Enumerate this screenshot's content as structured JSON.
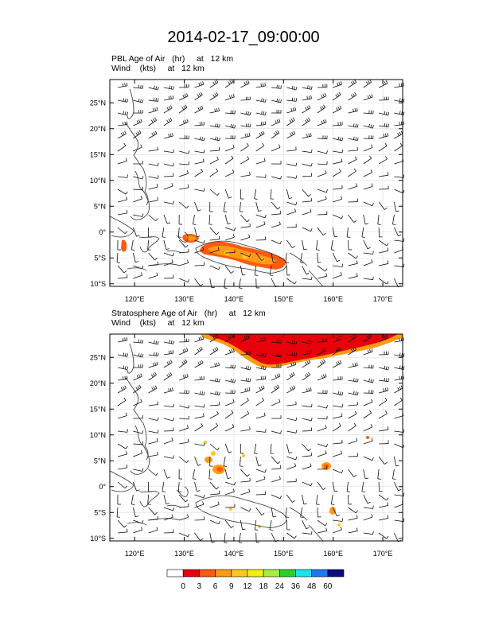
{
  "title": "2014-02-17_09:00:00",
  "panels": [
    {
      "id": "pbl",
      "field_line": "PBL Age of Air   (hr)     at   12 km",
      "wind_line": "Wind    (kts)     at   12 km",
      "lon_ticks": [
        "120°E",
        "130°E",
        "140°E",
        "150°E",
        "160°E",
        "170°E"
      ],
      "lat_ticks": [
        "25°N",
        "20°N",
        "15°N",
        "10°N",
        "5°N",
        "0°",
        "5°S",
        "10°S"
      ]
    },
    {
      "id": "strat",
      "field_line": "Stratosphere Age of Air   (hr)     at   12 km",
      "wind_line": "Wind    (kts)     at   12 km",
      "lon_ticks": [
        "120°E",
        "130°E",
        "140°E",
        "150°E",
        "160°E",
        "170°E"
      ],
      "lat_ticks": [
        "25°N",
        "20°N",
        "15°N",
        "10°N",
        "5°N",
        "0°",
        "5°S",
        "10°S"
      ]
    }
  ],
  "colorbar": {
    "labels": [
      "0",
      "3",
      "6",
      "9",
      "12",
      "18",
      "24",
      "36",
      "48",
      "60"
    ],
    "colors": [
      "#ffffff",
      "#e8000b",
      "#ff5a10",
      "#ff9a14",
      "#ffc81e",
      "#f5f000",
      "#a8f03c",
      "#28d228",
      "#14e6f0",
      "#1e78f0",
      "#0a0a82"
    ]
  },
  "colors": {
    "frame": "#000000",
    "grid": "#d9d9d9",
    "coast": "#333333",
    "barb": "#111111"
  }
}
